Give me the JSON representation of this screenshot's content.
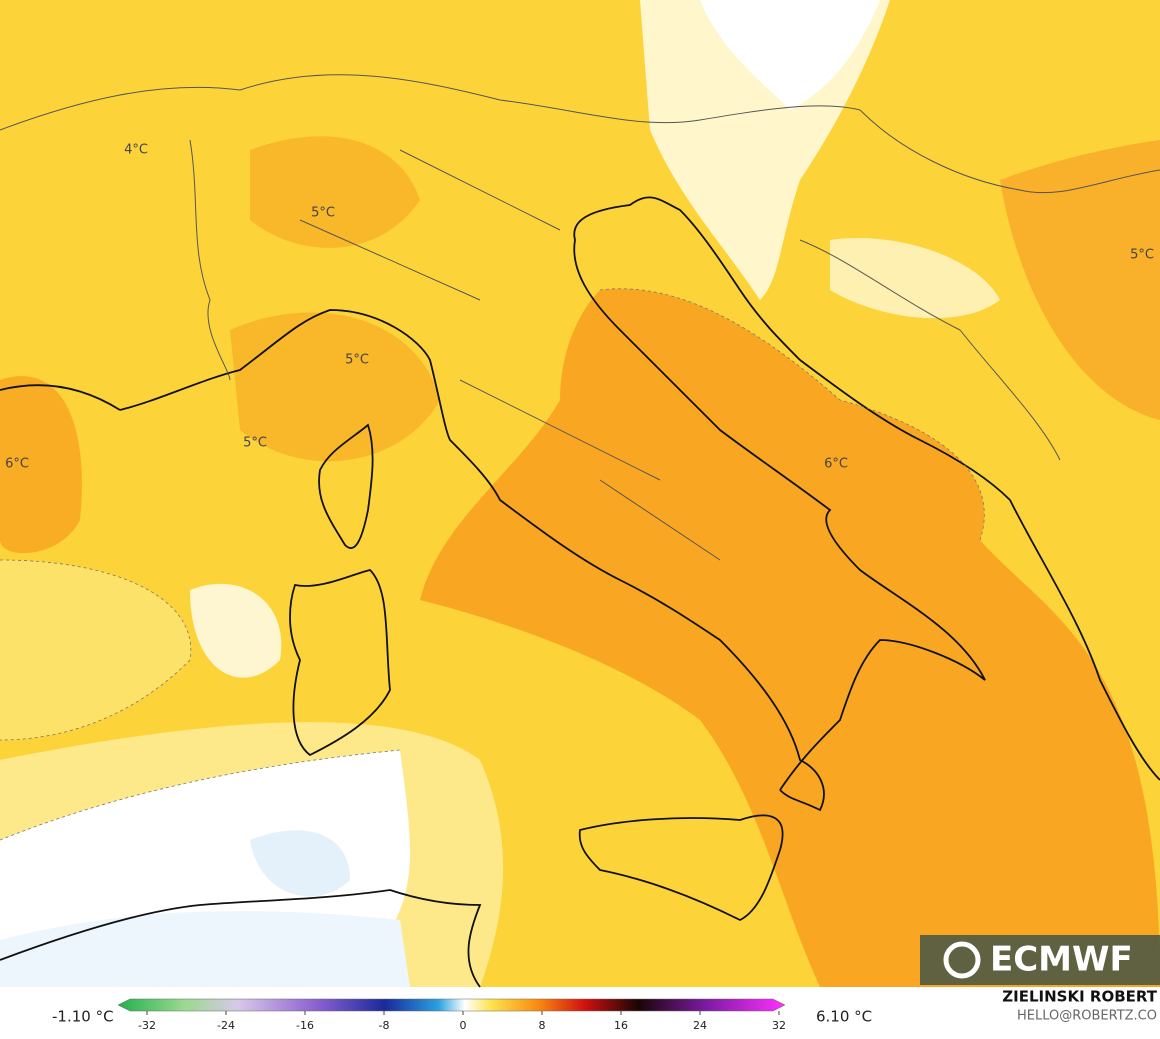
{
  "map": {
    "contour_labels": [
      "4°C",
      "5°C",
      "5°C",
      "5°C",
      "6°C",
      "6°C",
      "5°C"
    ],
    "logo": "ECMWF",
    "author": "ZIELINSKI ROBERT",
    "contact": "HELLO@ROBERTZ.CO",
    "colorbar": {
      "min_label": "-1.10 °C",
      "max_label": "6.10 °C",
      "ticks": [
        -32,
        -24,
        -16,
        -8,
        0,
        8,
        16,
        24,
        32
      ]
    }
  }
}
